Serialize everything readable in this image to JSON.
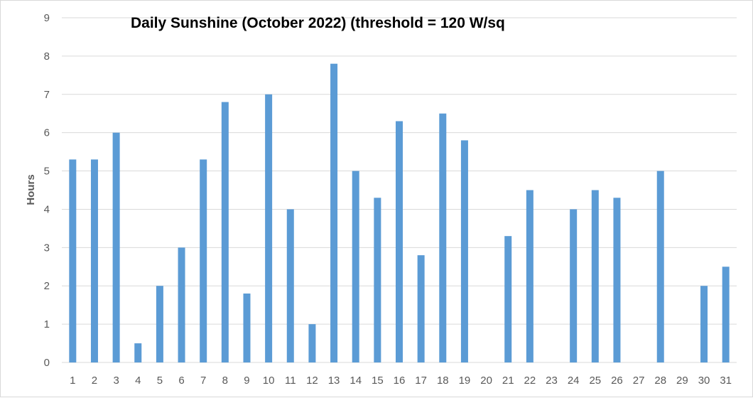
{
  "chart_data": {
    "type": "bar",
    "title": "Daily Sunshine (October 2022) (threshold = 120 W/sq",
    "xlabel": "",
    "ylabel": "Hours",
    "ylim": [
      0,
      9
    ],
    "yticks": [
      "0",
      "1",
      "2",
      "3",
      "4",
      "5",
      "6",
      "7",
      "8",
      "9"
    ],
    "grid": true,
    "legend": "none",
    "bar_color": "#5b9bd5",
    "categories": [
      "1",
      "2",
      "3",
      "4",
      "5",
      "6",
      "7",
      "8",
      "9",
      "10",
      "11",
      "12",
      "13",
      "14",
      "15",
      "16",
      "17",
      "18",
      "19",
      "20",
      "21",
      "22",
      "23",
      "24",
      "25",
      "26",
      "27",
      "28",
      "29",
      "30",
      "31"
    ],
    "values": [
      5.3,
      5.3,
      6.0,
      0.5,
      2.0,
      3.0,
      5.3,
      6.8,
      1.8,
      7.0,
      4.0,
      1.0,
      7.8,
      5.0,
      4.3,
      6.3,
      2.8,
      6.5,
      5.8,
      0,
      3.3,
      4.5,
      0,
      4.0,
      4.5,
      4.3,
      0,
      5.0,
      0,
      2.0,
      2.5
    ]
  }
}
